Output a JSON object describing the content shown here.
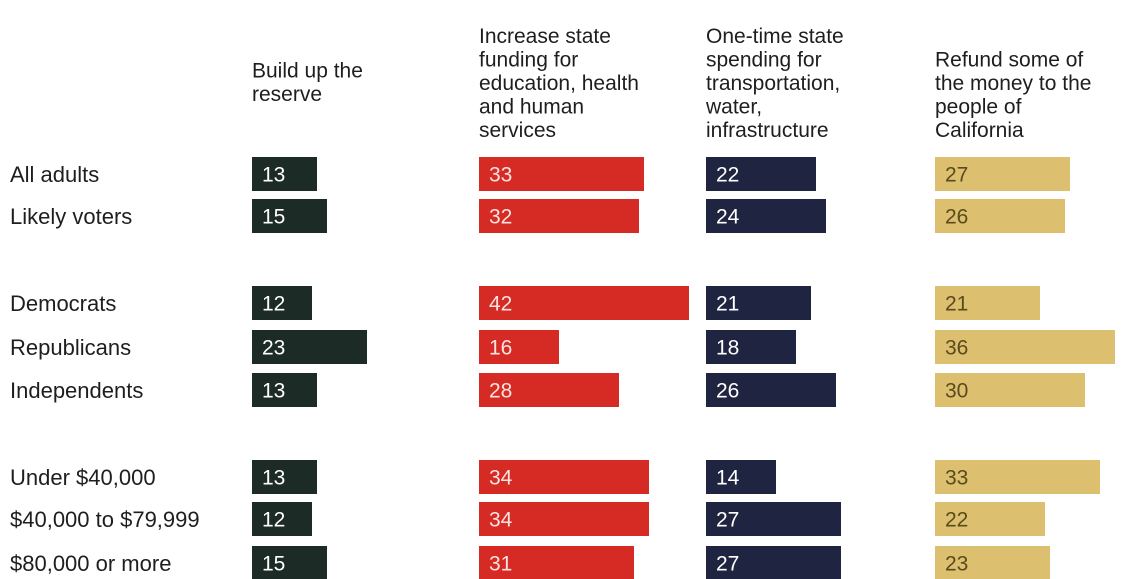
{
  "chart_data": {
    "type": "bar",
    "columns": [
      {
        "name": "Build up the reserve",
        "header_lines": [
          "Build up the",
          "reserve"
        ],
        "color": "#1c2b26",
        "label_color": "#ffffff"
      },
      {
        "name": "Increase state funding for education, health and human services",
        "header_lines": [
          "Increase state",
          "funding for",
          "education, health",
          "and human",
          "services"
        ],
        "color": "#d62a24",
        "label_color": "#fbe3e1"
      },
      {
        "name": "One-time state spending for transportation, water, infrastructure",
        "header_lines": [
          "One-time state",
          "spending for",
          "transportation,",
          "water,",
          "infrastructure"
        ],
        "color": "#1f2540",
        "label_color": "#ffffff"
      },
      {
        "name": "Refund some of the money to the people of California",
        "header_lines": [
          "Refund some of",
          "the money to the",
          "people of",
          "California"
        ],
        "color": "#dcc06f",
        "label_color": "#5a4a1c"
      }
    ],
    "categories": [
      "All adults",
      "Likely voters",
      "Democrats",
      "Republicans",
      "Independents",
      "Under $40,000",
      "$40,000 to $79,999",
      "$80,000 or more"
    ],
    "series": [
      {
        "name": "Build up the reserve",
        "values": [
          13,
          15,
          12,
          23,
          13,
          13,
          12,
          15
        ]
      },
      {
        "name": "Increase state funding for education, health and human services",
        "values": [
          33,
          32,
          42,
          16,
          28,
          34,
          34,
          31
        ]
      },
      {
        "name": "One-time state spending for transportation, water, infrastructure",
        "values": [
          22,
          24,
          21,
          18,
          26,
          14,
          27,
          27
        ]
      },
      {
        "name": "Refund some of the money to the people of California",
        "values": [
          27,
          26,
          21,
          36,
          30,
          33,
          22,
          23
        ]
      }
    ]
  }
}
